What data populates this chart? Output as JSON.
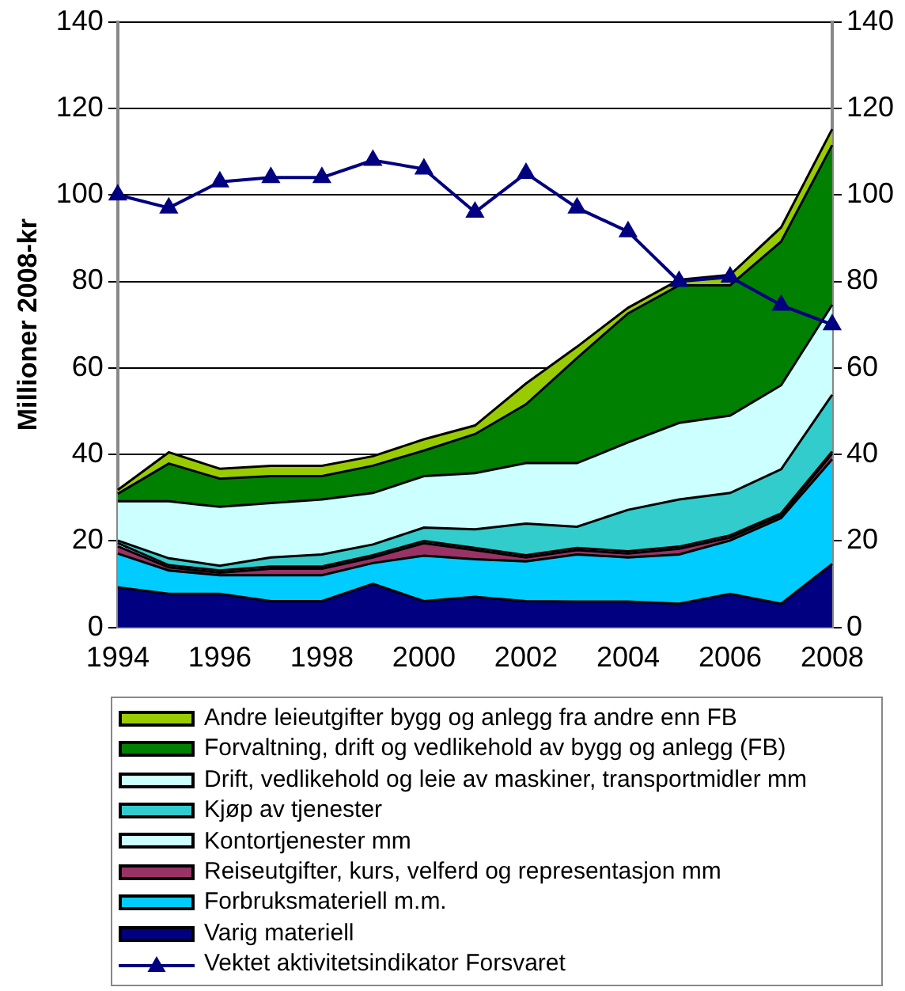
{
  "chart_data": {
    "type": "area",
    "stacked": true,
    "ylabel": "Millioner 2008-kr",
    "categories": [
      "1994",
      null,
      "1996",
      null,
      "1998",
      null,
      "2000",
      null,
      "2002",
      null,
      "2004",
      null,
      "2006",
      null,
      "2008"
    ],
    "ylim": [
      0,
      140
    ],
    "yticks": [
      0,
      20,
      40,
      60,
      80,
      100,
      120,
      140
    ],
    "y2lim": [
      0,
      140
    ],
    "y2ticks": [
      0,
      20,
      40,
      60,
      80,
      100,
      120,
      140
    ],
    "grid": "y",
    "legend": "bottom",
    "series": [
      {
        "name": "Varig materiell",
        "color": "#000080",
        "values": [
          9.3,
          7.8,
          7.8,
          6.1,
          6.1,
          10.1,
          6.1,
          7.1,
          6.1,
          6.0,
          6.0,
          5.5,
          7.8,
          5.5,
          14.7
        ]
      },
      {
        "name": "Forbruksmateriell m.m.",
        "color": "#00ccff",
        "values": [
          7.8,
          5.4,
          4.3,
          6.0,
          6.0,
          4.8,
          10.5,
          8.7,
          9.2,
          10.9,
          10.2,
          11.4,
          12.3,
          19.8,
          24.2
        ]
      },
      {
        "name": "Reiseutgifter, kurs, velferd og representasjon mm",
        "color": "#993366",
        "values": [
          1.7,
          0.7,
          0.6,
          1.5,
          1.5,
          1.3,
          2.9,
          2.1,
          0.9,
          1.0,
          0.9,
          1.3,
          0.7,
          0.6,
          1.3
        ]
      },
      {
        "name": "Kontortjenester mm",
        "color": "#ccffff",
        "values": [
          0.7,
          0.5,
          0.5,
          0.5,
          0.5,
          0.5,
          0.5,
          0.5,
          0.5,
          0.5,
          0.5,
          0.5,
          0.5,
          0.5,
          0.5
        ]
      },
      {
        "name": "Kjøp av tjenester",
        "color": "#33cccc",
        "values": [
          0.6,
          1.6,
          1.1,
          2.1,
          2.8,
          2.5,
          3.1,
          4.3,
          7.3,
          4.9,
          9.6,
          10.9,
          9.8,
          10.2,
          13.1
        ]
      },
      {
        "name": "Drift, vedlikehold og leie av maskiner, transportmidler mm",
        "color": "#ccffff",
        "values": [
          9.1,
          13.2,
          13.6,
          12.6,
          12.7,
          11.9,
          11.9,
          13.0,
          14.0,
          14.7,
          15.6,
          17.7,
          17.9,
          19.4,
          20.8
        ]
      },
      {
        "name": "Forvaltning, drift og vedlikehold av bygg og anlegg (FB)",
        "color": "#008000",
        "values": [
          1.7,
          8.7,
          6.5,
          6.2,
          5.4,
          6.3,
          5.9,
          9.0,
          13.6,
          24.3,
          29.8,
          31.8,
          30.1,
          33.2,
          36.9
        ]
      },
      {
        "name": "Andre leieutgifter bygg og anlegg fra andre enn FB",
        "color": "#99cc00",
        "values": [
          0.9,
          2.6,
          2.3,
          2.4,
          2.4,
          2.2,
          2.6,
          2.0,
          4.8,
          2.6,
          1.3,
          1.3,
          2.4,
          3.3,
          3.7
        ]
      },
      {
        "name": "Vektet aktivitetsindikator Forsvaret",
        "type": "line",
        "axis": "y2",
        "marker": "triangle",
        "color": "#000080",
        "values": [
          100,
          97,
          103,
          104,
          104,
          108,
          106,
          96,
          105,
          97,
          91.5,
          80,
          81,
          74.5,
          70
        ]
      }
    ]
  }
}
